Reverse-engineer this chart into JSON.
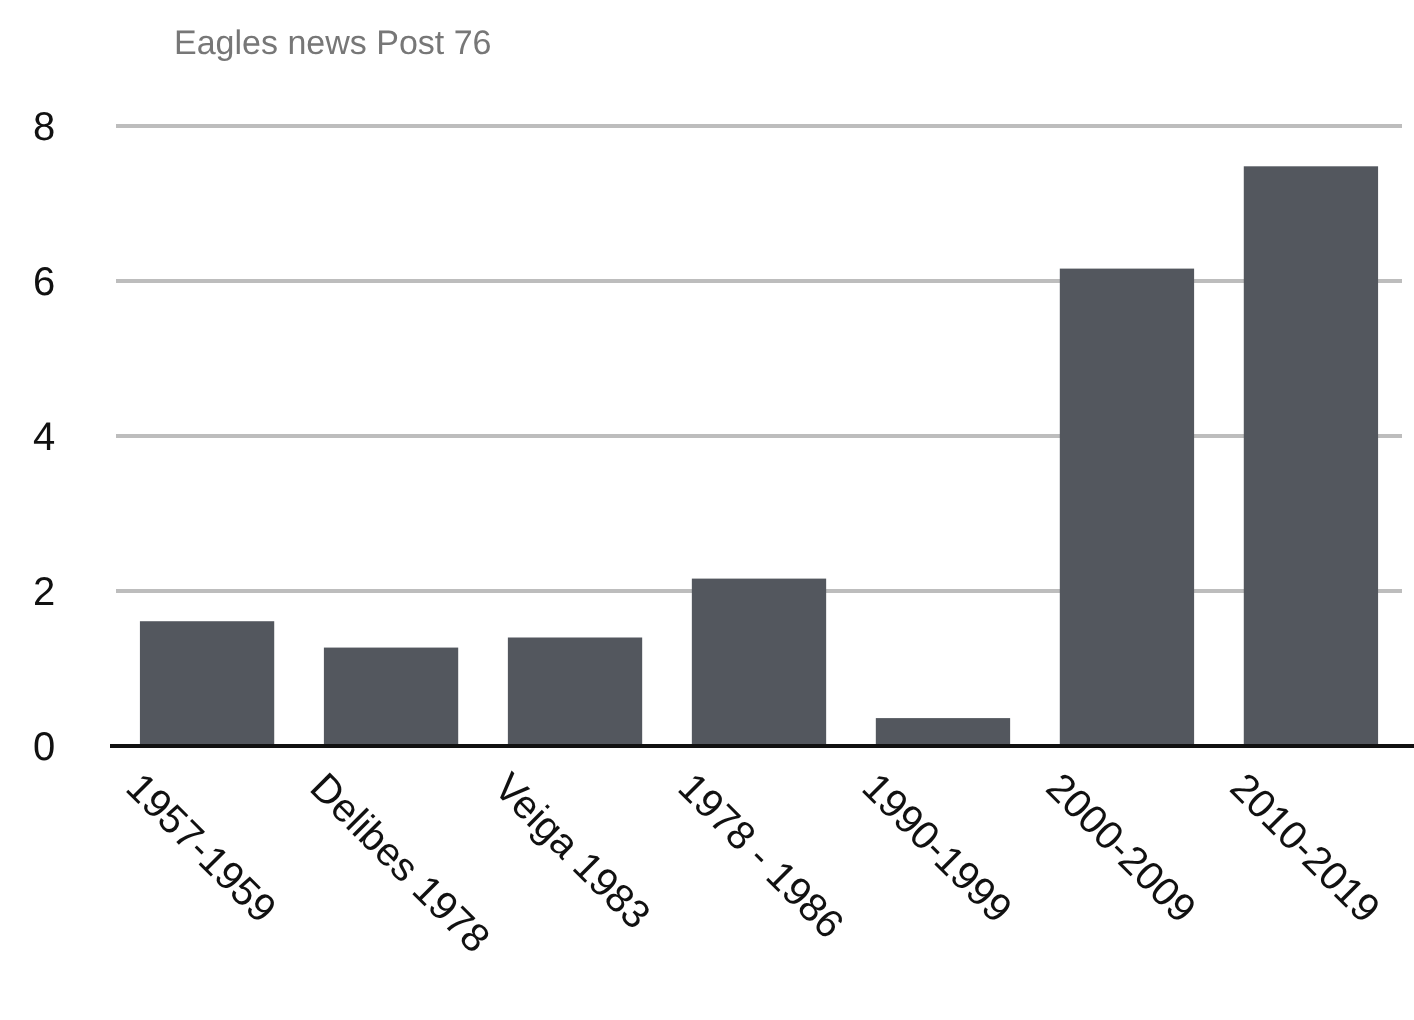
{
  "chart_data": {
    "type": "bar",
    "title": "Eagles news Post 76",
    "categories": [
      "1957-1959",
      "Delibes 1978",
      "Veiga 1983",
      "1978 - 1986",
      "1990-1999",
      "2000-2009",
      "2010-2019"
    ],
    "values": [
      1.61,
      1.27,
      1.4,
      2.16,
      0.36,
      6.16,
      7.48
    ],
    "color": "#53575e",
    "ylim": [
      0,
      8
    ],
    "yticks": [
      0,
      2,
      4,
      6,
      8
    ],
    "grid": "y"
  }
}
